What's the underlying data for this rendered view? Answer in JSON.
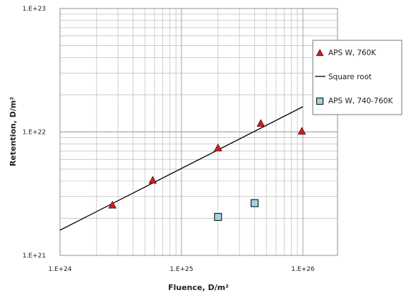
{
  "chart_data": {
    "type": "scatter",
    "title": "",
    "xlabel": "Fluence, D/m²",
    "ylabel": "Retention, D/m²",
    "xscale": "log",
    "yscale": "log",
    "xlim": [
      1e+24,
      1.3e+26
    ],
    "ylim": [
      1e+21,
      1e+23
    ],
    "x_ticks": [
      "1.E+24",
      "1.E+25",
      "1.E+26"
    ],
    "y_ticks": [
      "1.E+21",
      "1.E+22",
      "1.E+23"
    ],
    "grid": true,
    "legend_position": "right",
    "series": [
      {
        "name": "APS W, 760K",
        "kind": "scatter",
        "marker": "triangle",
        "color": "#cc1f1f",
        "x": [
          2.7e+24,
          5.8e+24,
          2e+25,
          4.5e+25,
          9.8e+25
        ],
        "y": [
          2.55e+21,
          4.05e+21,
          7.4e+21,
          1.17e+22,
          1.01e+22
        ]
      },
      {
        "name": "Square root",
        "kind": "line",
        "color": "#000000",
        "x": [
          1e+24,
          1e+26
        ],
        "y": [
          1.6e+21,
          1.6e+22
        ]
      },
      {
        "name": "APS W, 740-760K",
        "kind": "scatter",
        "marker": "square",
        "color": "#9fd3e6",
        "x": [
          2e+25,
          4e+25
        ],
        "y": [
          2.05e+21,
          2.65e+21
        ]
      }
    ]
  }
}
